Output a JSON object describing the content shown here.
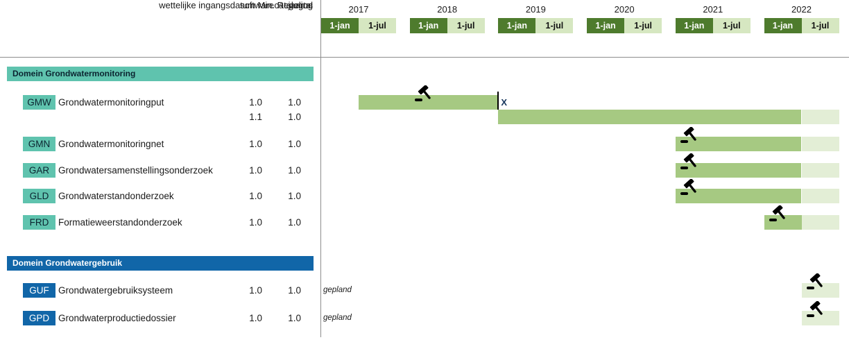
{
  "header": {
    "jaartal_label": "jaartal",
    "regulation_label": "wettelijke ingangsdatum Min. Regeling",
    "column_headers": [
      "software",
      "catalogus"
    ]
  },
  "colors": {
    "cell_jan_bg": "#4e7b2d",
    "cell_jan_text": "#ffffff",
    "cell_jul_bg": "#d6e7c1",
    "cell_jul_text": "#111111",
    "bar_solid": "#a6c982",
    "bar_planned": "#e3eed6",
    "section_teal_bg": "#5fc3ae",
    "section_teal_text": "#0b2430",
    "section_blue_bg": "#1166a8",
    "section_blue_text": "#ffffff",
    "grid_line": "#8c8c8c",
    "gavel_icon": "#000000",
    "end_marker_text": "#17365d",
    "text": "#1a1a1a"
  },
  "chart_data": {
    "type": "bar",
    "subtype": "gantt-timeline",
    "x_axis": {
      "label": "jaartal",
      "years": [
        2017,
        2018,
        2019,
        2020,
        2021,
        2022
      ],
      "half_year_labels": [
        "1-jan",
        "1-jul"
      ]
    },
    "value_columns": [
      "software",
      "catalogus"
    ],
    "sections": [
      {
        "title": "Domein Grondwatermonitoring",
        "theme": "teal",
        "rows": [
          {
            "code": "GMW",
            "name": "Grondwatermonitoringput",
            "lines": [
              {
                "software": "1.0",
                "catalogus": "1.0",
                "bar": {
                  "start": 2017.5,
                  "solid_end": 2019.0,
                  "gavel_year": 2018.0,
                  "end_marker": "X"
                }
              },
              {
                "software": "1.1",
                "catalogus": "1.0",
                "bar": {
                  "start": 2019.0,
                  "solid_end": 2022.5,
                  "planned_end": 2023.0
                }
              }
            ]
          },
          {
            "code": "GMN",
            "name": "Grondwatermonitoringnet",
            "lines": [
              {
                "software": "1.0",
                "catalogus": "1.0",
                "bar": {
                  "start": 2021.0,
                  "solid_end": 2022.5,
                  "planned_end": 2023.0,
                  "gavel_year": 2021.0
                }
              }
            ]
          },
          {
            "code": "GAR",
            "name": "Grondwatersamenstellingsonderzoek",
            "lines": [
              {
                "software": "1.0",
                "catalogus": "1.0",
                "bar": {
                  "start": 2021.0,
                  "solid_end": 2022.5,
                  "planned_end": 2023.0,
                  "gavel_year": 2021.0
                }
              }
            ]
          },
          {
            "code": "GLD",
            "name": "Grondwaterstandonderzoek",
            "lines": [
              {
                "software": "1.0",
                "catalogus": "1.0",
                "bar": {
                  "start": 2021.0,
                  "solid_end": 2022.5,
                  "planned_end": 2023.0,
                  "gavel_year": 2021.0
                }
              }
            ]
          },
          {
            "code": "FRD",
            "name": "Formatieweerstandonderzoek",
            "lines": [
              {
                "software": "1.0",
                "catalogus": "1.0",
                "bar": {
                  "start": 2022.0,
                  "solid_end": 2022.5,
                  "planned_end": 2023.0,
                  "gavel_year": 2022.0
                }
              }
            ]
          }
        ]
      },
      {
        "title": "Domein Grondwatergebruik",
        "theme": "blue",
        "rows": [
          {
            "code": "GUF",
            "name": "Grondwatergebruiksysteem",
            "status": "gepland",
            "lines": [
              {
                "software": "1.0",
                "catalogus": "1.0",
                "bar": {
                  "start": 2022.5,
                  "solid_end": 2022.5,
                  "planned_end": 2023.0,
                  "gavel_year": 2022.5
                }
              }
            ]
          },
          {
            "code": "GPD",
            "name": "Grondwaterproductiedossier",
            "status": "gepland",
            "lines": [
              {
                "software": "1.0",
                "catalogus": "1.0",
                "bar": {
                  "start": 2022.5,
                  "solid_end": 2022.5,
                  "planned_end": 2023.0,
                  "gavel_year": 2022.5
                }
              }
            ]
          }
        ]
      }
    ]
  }
}
